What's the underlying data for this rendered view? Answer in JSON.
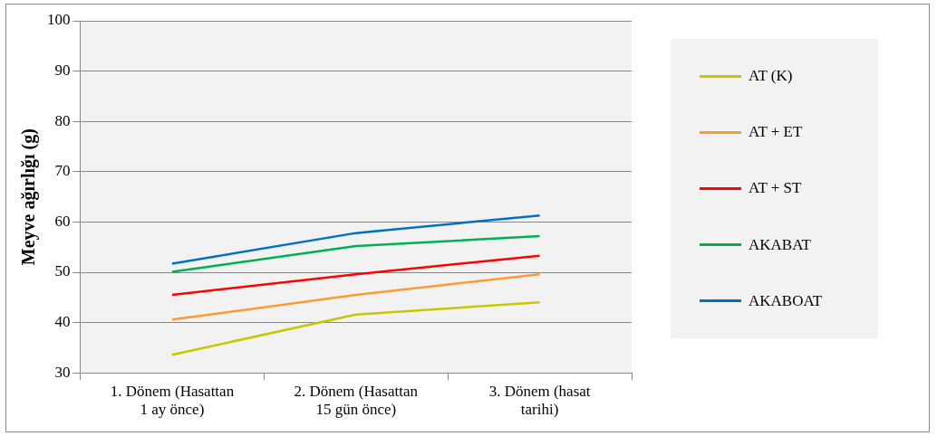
{
  "chart_data": {
    "type": "line",
    "ylabel": "Meyve ağırlığı (g)",
    "categories": [
      "1. Dönem (Hasattan 1 ay önce)",
      "2. Dönem (Hasattan 15 gün önce)",
      "3. Dönem (hasat tarihi)"
    ],
    "series": [
      {
        "name": "AT (K)",
        "color": "#c8c800",
        "values": [
          33.6,
          41.6,
          44.0
        ]
      },
      {
        "name": "AT + ET",
        "color": "#ff9933",
        "values": [
          40.6,
          45.5,
          49.6
        ]
      },
      {
        "name": "AT + ST",
        "color": "#ff0000",
        "values": [
          45.5,
          49.6,
          53.3
        ]
      },
      {
        "name": "AKABAT",
        "color": "#00b050",
        "values": [
          50.1,
          55.2,
          57.2
        ]
      },
      {
        "name": "AKABOAT",
        "color": "#0070c0",
        "values": [
          51.7,
          57.8,
          61.3
        ]
      }
    ],
    "ylim": [
      30,
      100
    ],
    "yticks": [
      30,
      40,
      50,
      60,
      70,
      80,
      90,
      100
    ],
    "grid": "y",
    "legend": "right",
    "marker": "none",
    "line_style": "solid"
  }
}
